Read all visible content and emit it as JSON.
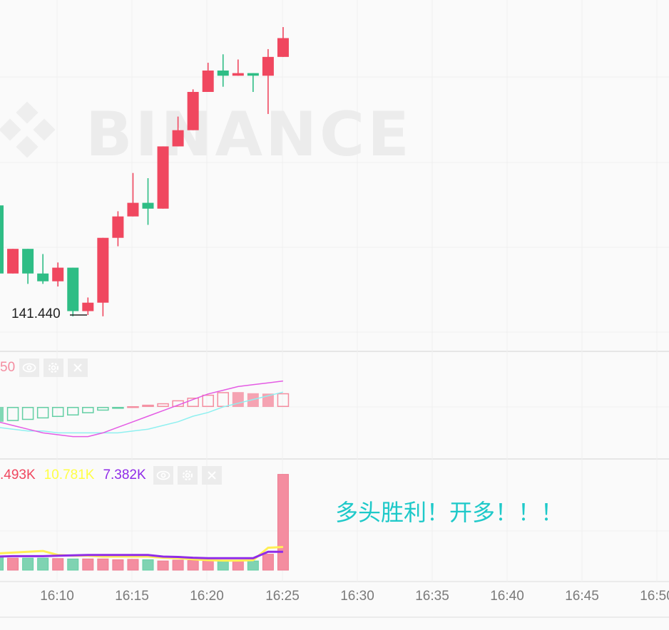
{
  "chart_data": {
    "type": "candlestick",
    "watermark": "BINANCE",
    "x_ticks": [
      "16:10",
      "16:15",
      "16:20",
      "16:25",
      "16:30",
      "16:35",
      "16:40",
      "16:45",
      "16:50"
    ],
    "candles": [
      {
        "open": 143.13,
        "high": 143.13,
        "low": 142.08,
        "close": 142.08
      },
      {
        "open": 142.08,
        "high": 142.46,
        "low": 142.08,
        "close": 142.46
      },
      {
        "open": 142.46,
        "high": 142.46,
        "low": 141.92,
        "close": 142.08
      },
      {
        "open": 142.08,
        "high": 142.38,
        "low": 141.92,
        "close": 141.96
      },
      {
        "open": 141.96,
        "high": 142.25,
        "low": 141.88,
        "close": 142.17
      },
      {
        "open": 142.17,
        "high": 142.17,
        "low": 141.42,
        "close": 141.5
      },
      {
        "open": 141.5,
        "high": 141.71,
        "low": 141.44,
        "close": 141.63
      },
      {
        "open": 141.63,
        "high": 142.63,
        "low": 141.42,
        "close": 142.63
      },
      {
        "open": 142.63,
        "high": 143.04,
        "low": 142.5,
        "close": 142.96
      },
      {
        "open": 142.96,
        "high": 143.63,
        "low": 142.96,
        "close": 143.17
      },
      {
        "open": 143.17,
        "high": 143.55,
        "low": 142.83,
        "close": 143.08
      },
      {
        "open": 143.08,
        "high": 144.04,
        "low": 143.08,
        "close": 144.04
      },
      {
        "open": 144.04,
        "high": 144.5,
        "low": 144.04,
        "close": 144.29
      },
      {
        "open": 144.29,
        "high": 144.92,
        "low": 144.29,
        "close": 144.88
      },
      {
        "open": 144.88,
        "high": 145.33,
        "low": 144.88,
        "close": 145.21
      },
      {
        "open": 145.21,
        "high": 145.46,
        "low": 144.96,
        "close": 145.13
      },
      {
        "open": 145.13,
        "high": 145.38,
        "low": 145.13,
        "close": 145.17
      },
      {
        "open": 145.17,
        "high": 145.17,
        "low": 144.88,
        "close": 145.13
      },
      {
        "open": 145.13,
        "high": 145.54,
        "low": 144.54,
        "close": 145.42
      },
      {
        "open": 145.42,
        "high": 145.88,
        "low": 145.42,
        "close": 145.71
      }
    ],
    "low_label": "141.440",
    "macd": {
      "label_fragment": "50",
      "histogram": [
        -0.08,
        -0.076,
        -0.07,
        -0.062,
        -0.054,
        -0.046,
        -0.034,
        -0.02,
        -0.01,
        0.004,
        0.012,
        0.02,
        0.036,
        0.05,
        0.066,
        0.08,
        0.08,
        0.074,
        0.072,
        0.074
      ],
      "dif": [
        -0.08,
        -0.1,
        -0.12,
        -0.14,
        -0.15,
        -0.16,
        -0.16,
        -0.14,
        -0.11,
        -0.08,
        -0.05,
        -0.02,
        0.01,
        0.04,
        0.07,
        0.09,
        0.11,
        0.12,
        0.13,
        0.14
      ],
      "dea": [
        -0.11,
        -0.12,
        -0.13,
        -0.13,
        -0.14,
        -0.14,
        -0.14,
        -0.14,
        -0.14,
        -0.13,
        -0.12,
        -0.1,
        -0.08,
        -0.05,
        -0.03,
        0.0,
        0.02,
        0.04,
        0.06,
        0.08
      ]
    },
    "volume": {
      "values_text": [
        ".493K",
        "10.781K",
        "7.382K"
      ],
      "colors": [
        "#f0475f",
        "#ffff44",
        "#8f2be8"
      ],
      "bars": [
        3.3,
        3.0,
        3.0,
        3.0,
        2.9,
        2.8,
        2.8,
        2.8,
        2.6,
        2.7,
        2.6,
        2.3,
        2.5,
        2.4,
        2.3,
        2.2,
        2.2,
        2.3,
        4.0,
        24.0
      ],
      "ma_yellow": [
        4.2,
        4.4,
        4.6,
        4.8,
        3.8,
        3.6,
        3.6,
        3.4,
        3.4,
        3.4,
        3.4,
        3.1,
        3.0,
        2.7,
        2.5,
        2.4,
        2.4,
        2.5,
        5.6,
        5.8
      ],
      "ma_purple": [
        3.4,
        3.5,
        3.5,
        3.5,
        3.6,
        3.7,
        3.8,
        3.8,
        3.8,
        3.8,
        3.8,
        3.4,
        3.3,
        3.1,
        3.0,
        3.0,
        3.0,
        3.0,
        4.6,
        4.6
      ]
    },
    "annotation": "多头胜利！开多！！！"
  }
}
